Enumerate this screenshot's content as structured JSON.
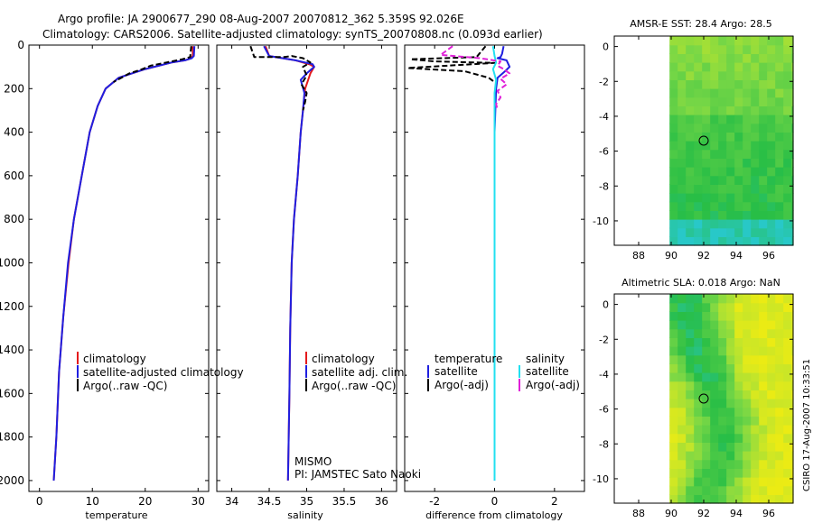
{
  "header": {
    "line1": "Argo profile: JA 2900677_290 08-Aug-2007 20070812_362 5.359S 92.026E",
    "line2": "Climatology: CARS2006. Satellite-adjusted climatology: synTS_20070808.nc (0.093d earlier)"
  },
  "credit": "CSIRO 17-Aug-2007 10:33:51",
  "colors": {
    "climatology": "#e41a1c",
    "satellite": "#1f1fe0",
    "argo": "#000000",
    "salinity_sat": "#22e0f0",
    "salinity_argo": "#e020d8"
  },
  "chart_data": [
    {
      "type": "line",
      "id": "temperature",
      "xlabel": "temperature",
      "ylabel": "",
      "xlim": [
        -2,
        32
      ],
      "ylim": [
        2050,
        0
      ],
      "xticks": [
        0,
        10,
        20,
        30
      ],
      "yticks": [
        0,
        200,
        400,
        600,
        800,
        1000,
        1200,
        1400,
        1600,
        1800,
        2000
      ],
      "series": [
        {
          "name": "climatology",
          "style": "solid",
          "x": [
            29.0,
            29.0,
            28.5,
            27.5,
            25.0,
            20.0,
            15.0,
            12.5,
            11.0,
            9.5,
            8.0,
            6.5,
            5.5,
            4.5,
            3.7,
            3.2,
            2.7
          ],
          "y": [
            5,
            50,
            62,
            70,
            80,
            110,
            150,
            200,
            280,
            400,
            600,
            800,
            1000,
            1250,
            1500,
            1800,
            2000
          ]
        },
        {
          "name": "satellite-adjusted climatology",
          "style": "solid",
          "x": [
            29.3,
            29.2,
            28.8,
            27.5,
            25.0,
            20.0,
            15.0,
            12.5,
            11.0,
            9.5,
            8.0,
            6.5,
            5.4,
            4.5,
            3.7,
            3.2,
            2.7
          ],
          "y": [
            5,
            50,
            60,
            70,
            80,
            110,
            150,
            200,
            280,
            400,
            600,
            800,
            1000,
            1250,
            1500,
            1800,
            2000
          ]
        },
        {
          "name": "Argo(..raw -QC)",
          "style": "dashed",
          "x": [
            28.7,
            28.5,
            27.0,
            24.0,
            21.0,
            19.5,
            17.0,
            14.0
          ],
          "y": [
            5,
            55,
            65,
            80,
            95,
            110,
            130,
            170
          ]
        }
      ],
      "legend": [
        "climatology",
        "satellite-adjusted climatology",
        "Argo(..raw -QC)"
      ]
    },
    {
      "type": "line",
      "id": "salinity",
      "xlabel": "salinity",
      "xlim": [
        33.8,
        36.2
      ],
      "ylim": [
        2050,
        0
      ],
      "xticks": [
        34,
        34.5,
        35,
        35.5,
        36
      ],
      "xticklabels": [
        "34",
        "34.5",
        "35",
        "35.5",
        "36"
      ],
      "series": [
        {
          "name": "climatology",
          "style": "solid",
          "x": [
            34.45,
            34.5,
            34.85,
            35.05,
            35.1,
            35.05,
            34.98,
            34.95,
            34.92,
            34.88,
            34.83,
            34.8,
            34.78,
            34.77,
            34.75
          ],
          "y": [
            5,
            50,
            70,
            90,
            100,
            130,
            200,
            300,
            400,
            600,
            800,
            1000,
            1300,
            1600,
            2000
          ]
        },
        {
          "name": "satellite adj. clim.",
          "style": "solid",
          "x": [
            34.43,
            34.5,
            34.85,
            35.08,
            35.1,
            35.0,
            34.92,
            34.97,
            34.95,
            34.92,
            34.88,
            34.83,
            34.8,
            34.78,
            34.77,
            34.75
          ],
          "y": [
            5,
            50,
            70,
            88,
            100,
            130,
            160,
            220,
            300,
            400,
            600,
            800,
            1000,
            1300,
            1600,
            2000
          ]
        },
        {
          "name": "Argo(..raw -QC)",
          "style": "dashed",
          "x": [
            34.25,
            34.3,
            34.7,
            34.8,
            34.95,
            35.05,
            34.95,
            35.0,
            34.93,
            35.0,
            34.98,
            34.95
          ],
          "y": [
            5,
            55,
            55,
            50,
            60,
            80,
            100,
            140,
            180,
            220,
            260,
            300
          ]
        }
      ],
      "legend": [
        "climatology",
        "satellite adj. clim.",
        "Argo(..raw -QC)"
      ],
      "annotation": [
        "MISMO",
        "PI: JAMSTEC Sato Naoki"
      ]
    },
    {
      "type": "line",
      "id": "difference",
      "xlabel": "difference from climatology",
      "xlim": [
        -3,
        3
      ],
      "ylim": [
        2050,
        0
      ],
      "xticks": [
        -2,
        0,
        2
      ],
      "series": [
        {
          "name": "temperature satellite",
          "style": "solid",
          "x": [
            0.3,
            0.25,
            0.2,
            0.1,
            0.4,
            0.5,
            0.35,
            0.1,
            0.05,
            0.0,
            0.0,
            0.0
          ],
          "y": [
            5,
            40,
            55,
            60,
            70,
            100,
            120,
            150,
            200,
            400,
            1000,
            2000
          ]
        },
        {
          "name": "temperature Argo(-adj)",
          "style": "dashed",
          "x": [
            -0.3,
            -0.6,
            -2.8,
            -2.0,
            0.0,
            -1.0,
            -2.9,
            -1.0,
            -0.2,
            0.0
          ],
          "y": [
            5,
            55,
            65,
            75,
            82,
            90,
            105,
            120,
            150,
            170
          ]
        },
        {
          "name": "salinity satellite",
          "style": "solid",
          "x": [
            -0.05,
            0.0,
            0.05,
            -0.05,
            0.05,
            0.0,
            0.0,
            0.0,
            0.0
          ],
          "y": [
            5,
            50,
            80,
            110,
            160,
            220,
            500,
            1000,
            2000
          ]
        },
        {
          "name": "salinity Argo(-adj)",
          "style": "dashed",
          "x": [
            -1.4,
            -1.8,
            -0.5,
            0.2,
            0.1,
            0.3,
            0.5,
            0.2,
            0.4,
            0.1,
            0.2,
            0.05,
            0.1
          ],
          "y": [
            5,
            45,
            60,
            75,
            95,
            110,
            130,
            155,
            180,
            210,
            240,
            270,
            300
          ]
        }
      ],
      "legend_title_left": "temperature",
      "legend_title_right": "salinity",
      "legend_left": [
        "satellite",
        "Argo(-adj)"
      ],
      "legend_right": [
        "satellite",
        "Argo(-adj)"
      ]
    },
    {
      "type": "heatmap",
      "id": "sst",
      "title": "AMSR-E SST: 28.4 Argo: 28.5",
      "xlim": [
        86.5,
        97.5
      ],
      "ylim": [
        -11.4,
        0.6
      ],
      "xticks": [
        88,
        90,
        92,
        94,
        96
      ],
      "yticks": [
        0,
        -2,
        -4,
        -6,
        -8,
        -10
      ],
      "marker": {
        "lon": 92.0,
        "lat": -5.4
      }
    },
    {
      "type": "heatmap",
      "id": "sla",
      "title": "Altimetric SLA: 0.018 Argo: NaN",
      "xlim": [
        86.5,
        97.5
      ],
      "ylim": [
        -11.4,
        0.6
      ],
      "xticks": [
        88,
        90,
        92,
        94,
        96
      ],
      "yticks": [
        0,
        -2,
        -4,
        -6,
        -8,
        -10
      ],
      "marker": {
        "lon": 92.0,
        "lat": -5.4
      }
    }
  ]
}
